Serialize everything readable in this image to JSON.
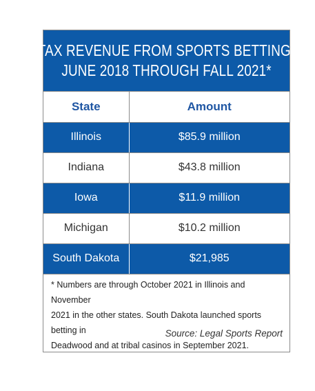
{
  "header": {
    "title_line1": "TAX REVENUE FROM SPORTS BETTING:",
    "title_line2": "JUNE 2018 THROUGH FALL 2021*"
  },
  "table": {
    "columns": [
      "State",
      "Amount"
    ],
    "rows": [
      {
        "state": "Illinois",
        "amount": "$85.9 million"
      },
      {
        "state": "Indiana",
        "amount": "$43.8 million"
      },
      {
        "state": "Iowa",
        "amount": "$11.9 million"
      },
      {
        "state": "Michigan",
        "amount": "$10.2 million"
      },
      {
        "state": "South Dakota",
        "amount": "$21,985"
      }
    ]
  },
  "footnote": {
    "line1": "* Numbers are through October 2021 in Illinois and November",
    "line2": "2021 in the other states. South Dakota launched sports betting in",
    "line3": "Deadwood and at tribal casinos in September 2021."
  },
  "source": "Source: Legal Sports Report",
  "colors": {
    "header_blue": "#0d5aa8",
    "column_header_text": "#1f56a3",
    "border": "#8a8a8a"
  }
}
